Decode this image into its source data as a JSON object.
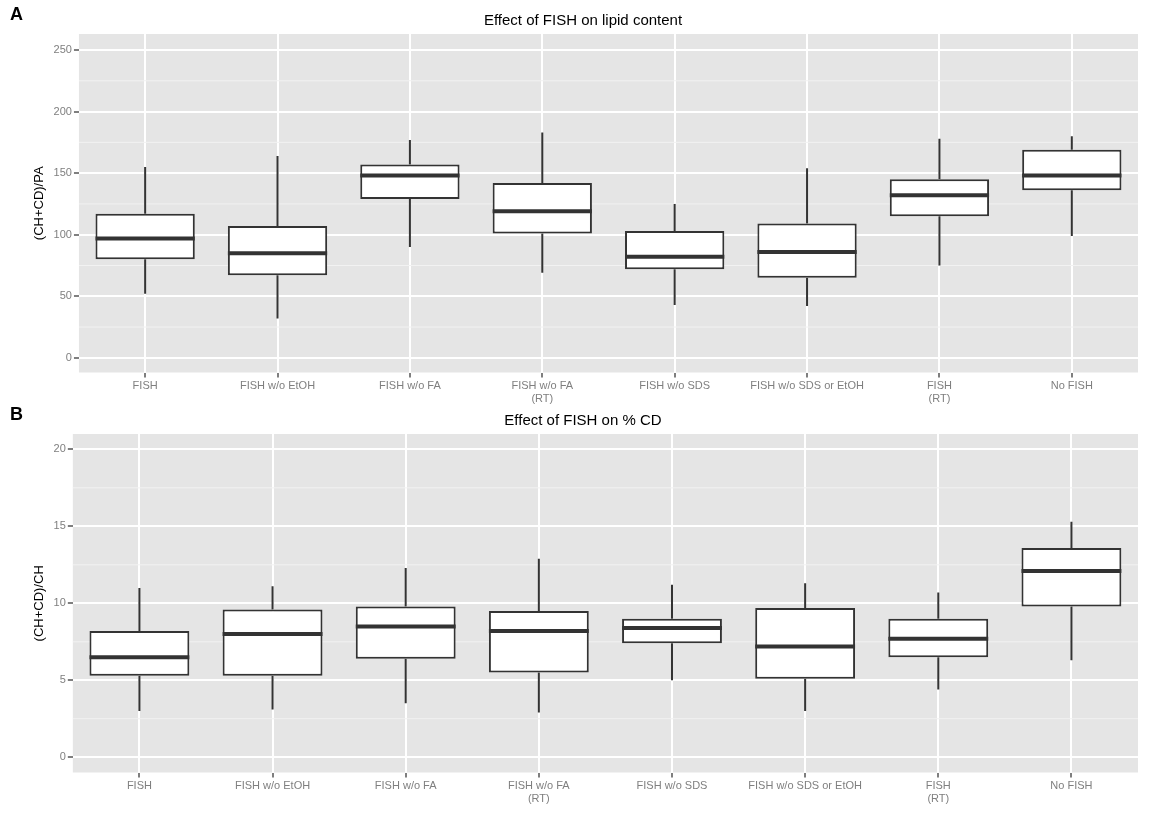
{
  "chart_data": [
    {
      "type": "box",
      "title": "Effect of FISH on lipid content",
      "ylabel": "(CH+CD)/PA",
      "annotations": [
        "A"
      ],
      "categories": [
        "FISH",
        "FISH w/o EtOH",
        "FISH w/o FA",
        "FISH w/o FA\n(RT)",
        "FISH w/o SDS",
        "FISH w/o SDS or EtOH",
        "FISH\n(RT)",
        "No FISH"
      ],
      "boxes": [
        {
          "low": 52,
          "q1": 80,
          "median": 97,
          "q3": 117,
          "high": 155
        },
        {
          "low": 32,
          "q1": 67,
          "median": 85,
          "q3": 107,
          "high": 164
        },
        {
          "low": 90,
          "q1": 129,
          "median": 148,
          "q3": 157,
          "high": 177
        },
        {
          "low": 69,
          "q1": 101,
          "median": 119,
          "q3": 142,
          "high": 183
        },
        {
          "low": 43,
          "q1": 72,
          "median": 82,
          "q3": 103,
          "high": 125
        },
        {
          "low": 42,
          "q1": 65,
          "median": 86,
          "q3": 109,
          "high": 154
        },
        {
          "low": 75,
          "q1": 115,
          "median": 132,
          "q3": 145,
          "high": 178
        },
        {
          "low": 99,
          "q1": 136,
          "median": 148,
          "q3": 169,
          "high": 180
        }
      ],
      "ylim": [
        -12,
        263
      ],
      "yticks": [
        0,
        50,
        100,
        150,
        200,
        250
      ],
      "grid": true,
      "legend": false
    },
    {
      "type": "box",
      "title": "Effect of FISH on % CD",
      "ylabel": "(CH+CD)/CH",
      "annotations": [
        "B"
      ],
      "categories": [
        "FISH",
        "FISH w/o EtOH",
        "FISH w/o FA",
        "FISH w/o FA\n(RT)",
        "FISH w/o SDS",
        "FISH w/o SDS or EtOH",
        "FISH\n(RT)",
        "No FISH"
      ],
      "boxes": [
        {
          "low": 3.0,
          "q1": 5.3,
          "median": 6.5,
          "q3": 8.2,
          "high": 11.0
        },
        {
          "low": 3.1,
          "q1": 5.3,
          "median": 8.0,
          "q3": 9.6,
          "high": 11.1
        },
        {
          "low": 3.5,
          "q1": 6.4,
          "median": 8.5,
          "q3": 9.8,
          "high": 12.3
        },
        {
          "low": 2.9,
          "q1": 5.5,
          "median": 8.2,
          "q3": 9.5,
          "high": 12.9
        },
        {
          "low": 5.0,
          "q1": 7.4,
          "median": 8.4,
          "q3": 9.0,
          "high": 11.2
        },
        {
          "low": 3.0,
          "q1": 5.1,
          "median": 7.2,
          "q3": 9.7,
          "high": 11.3
        },
        {
          "low": 4.4,
          "q1": 6.5,
          "median": 7.7,
          "q3": 9.0,
          "high": 10.7
        },
        {
          "low": 6.3,
          "q1": 9.8,
          "median": 12.1,
          "q3": 13.6,
          "high": 15.3
        }
      ],
      "ylim": [
        -1,
        21
      ],
      "yticks": [
        0,
        5,
        10,
        15,
        20
      ],
      "grid": true,
      "legend": false
    }
  ]
}
